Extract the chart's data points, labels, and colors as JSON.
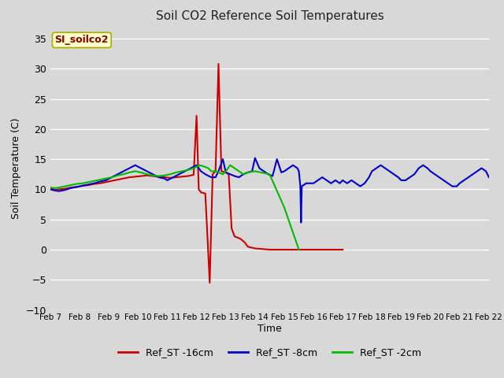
{
  "title": "Soil CO2 Reference Soil Temperatures",
  "xlabel": "Time",
  "ylabel": "Soil Temperature (C)",
  "ylim": [
    -10,
    37
  ],
  "yticks": [
    -10,
    -5,
    0,
    5,
    10,
    15,
    20,
    25,
    30,
    35
  ],
  "bg_color": "#d8d8d8",
  "plot_bg_color": "#d8d8d8",
  "grid_color": "#ffffff",
  "label_box": "SI_soilco2",
  "label_box_bg": "#ffffcc",
  "label_box_text_color": "#8b0000",
  "red_x": [
    0,
    0.3,
    0.6,
    1.0,
    1.4,
    1.8,
    2.2,
    2.6,
    3.0,
    3.4,
    3.8,
    4.2,
    4.6,
    5.0,
    5.4,
    5.8,
    6.2,
    6.6,
    7.0,
    7.4,
    7.8,
    8.2,
    8.6,
    9.0,
    9.4,
    9.8,
    10.0,
    10.15,
    10.3,
    10.6,
    10.9,
    11.1,
    11.3,
    11.5,
    11.7,
    12.0,
    12.2,
    12.4,
    12.6,
    12.8,
    13.0,
    13.15,
    13.3,
    13.5,
    14.0,
    14.5,
    15.0,
    15.5,
    16.0,
    16.5,
    17.0,
    17.5,
    18.0,
    19.0,
    20.0
  ],
  "red_y": [
    10.2,
    9.9,
    10.0,
    10.1,
    10.3,
    10.4,
    10.6,
    10.7,
    10.9,
    11.0,
    11.2,
    11.4,
    11.6,
    11.8,
    12.0,
    12.1,
    12.2,
    12.3,
    12.2,
    12.1,
    12.0,
    11.9,
    12.0,
    12.1,
    12.2,
    12.4,
    22.2,
    10.0,
    9.5,
    9.3,
    -5.5,
    12.5,
    13.0,
    30.8,
    13.0,
    12.8,
    12.5,
    3.5,
    2.2,
    2.0,
    1.8,
    1.5,
    1.2,
    0.5,
    0.2,
    0.1,
    0.0,
    0.0,
    0.0,
    0.0,
    0.0,
    0.0,
    0.0,
    0.0,
    0.0
  ],
  "blue_x": [
    0,
    0.3,
    0.6,
    1.0,
    1.4,
    1.8,
    2.2,
    2.6,
    3.0,
    3.4,
    3.8,
    4.2,
    4.6,
    5.0,
    5.4,
    5.8,
    6.2,
    6.6,
    7.0,
    7.4,
    7.8,
    8.0,
    8.4,
    8.8,
    9.2,
    9.6,
    10.0,
    10.3,
    10.6,
    11.0,
    11.3,
    11.5,
    11.8,
    12.0,
    12.3,
    12.6,
    12.9,
    13.2,
    13.5,
    13.8,
    14.0,
    14.3,
    14.6,
    14.9,
    15.2,
    15.5,
    15.8,
    16.0,
    16.3,
    16.6,
    16.9,
    17.0,
    17.1,
    17.15,
    17.2,
    17.5,
    18.0,
    18.3,
    18.6,
    18.9,
    19.2,
    19.5,
    19.8,
    20.0,
    20.3,
    20.6,
    20.9,
    21.2,
    21.5,
    21.8,
    22.0,
    22.3,
    22.6,
    22.9,
    23.2,
    23.5,
    23.8,
    24.0,
    24.3,
    24.6,
    24.9,
    25.2,
    25.5,
    25.8,
    26.0,
    26.3,
    26.6,
    26.9,
    27.2,
    27.5,
    27.8,
    28.0,
    28.3,
    28.6,
    28.9,
    29.2,
    29.5,
    29.8,
    30.0
  ],
  "blue_y": [
    10.0,
    9.8,
    9.7,
    9.9,
    10.2,
    10.4,
    10.6,
    10.8,
    11.0,
    11.3,
    11.5,
    12.0,
    12.5,
    13.0,
    13.5,
    14.0,
    13.5,
    13.0,
    12.5,
    12.0,
    11.8,
    11.5,
    12.0,
    12.5,
    13.0,
    13.5,
    14.0,
    13.0,
    12.5,
    12.0,
    12.0,
    13.0,
    15.0,
    12.8,
    12.5,
    12.2,
    12.0,
    12.5,
    12.8,
    13.0,
    15.2,
    13.5,
    13.0,
    12.5,
    12.2,
    15.0,
    12.8,
    13.0,
    13.5,
    14.0,
    13.5,
    13.0,
    10.5,
    4.5,
    10.5,
    11.0,
    11.0,
    11.5,
    12.0,
    11.5,
    11.0,
    11.5,
    11.0,
    11.5,
    11.0,
    11.5,
    11.0,
    10.5,
    11.0,
    12.0,
    13.0,
    13.5,
    14.0,
    13.5,
    13.0,
    12.5,
    12.0,
    11.5,
    11.5,
    12.0,
    12.5,
    13.5,
    14.0,
    13.5,
    13.0,
    12.5,
    12.0,
    11.5,
    11.0,
    10.5,
    10.5,
    11.0,
    11.5,
    12.0,
    12.5,
    13.0,
    13.5,
    13.0,
    12.0
  ],
  "green_x": [
    0,
    0.3,
    0.6,
    1.0,
    1.4,
    1.8,
    2.2,
    2.6,
    3.0,
    3.4,
    3.8,
    4.2,
    4.6,
    5.0,
    5.4,
    5.8,
    6.2,
    6.6,
    7.0,
    7.4,
    7.8,
    8.2,
    8.6,
    9.0,
    9.4,
    9.8,
    10.2,
    10.5,
    10.8,
    11.0,
    11.3,
    11.5,
    11.8,
    12.0,
    12.3,
    12.6,
    12.9,
    13.2,
    13.5,
    14.0,
    15.0,
    16.0,
    17.0
  ],
  "green_y": [
    10.3,
    10.2,
    10.3,
    10.5,
    10.7,
    10.9,
    11.0,
    11.2,
    11.4,
    11.6,
    11.8,
    12.0,
    12.3,
    12.5,
    12.8,
    13.0,
    12.8,
    12.5,
    12.3,
    12.2,
    12.3,
    12.5,
    12.8,
    13.0,
    13.2,
    13.5,
    14.0,
    13.8,
    13.5,
    13.0,
    13.0,
    12.8,
    12.5,
    13.0,
    14.0,
    13.5,
    13.0,
    12.5,
    12.8,
    13.0,
    12.5,
    7.0,
    0.0
  ],
  "xtick_labels": [
    "Feb 7",
    "Feb 8",
    "Feb 9",
    "Feb 10",
    "Feb 11",
    "Feb 12",
    "Feb 13",
    "Feb 14",
    "Feb 15",
    "Feb 16",
    "Feb 17",
    "Feb 18",
    "Feb 19",
    "Feb 20",
    "Feb 21",
    "Feb 22"
  ],
  "xtick_positions": [
    0,
    2,
    4,
    6,
    8,
    10,
    12,
    14,
    16,
    18,
    20,
    22,
    24,
    26,
    28,
    30
  ],
  "xlim": [
    0,
    30
  ]
}
